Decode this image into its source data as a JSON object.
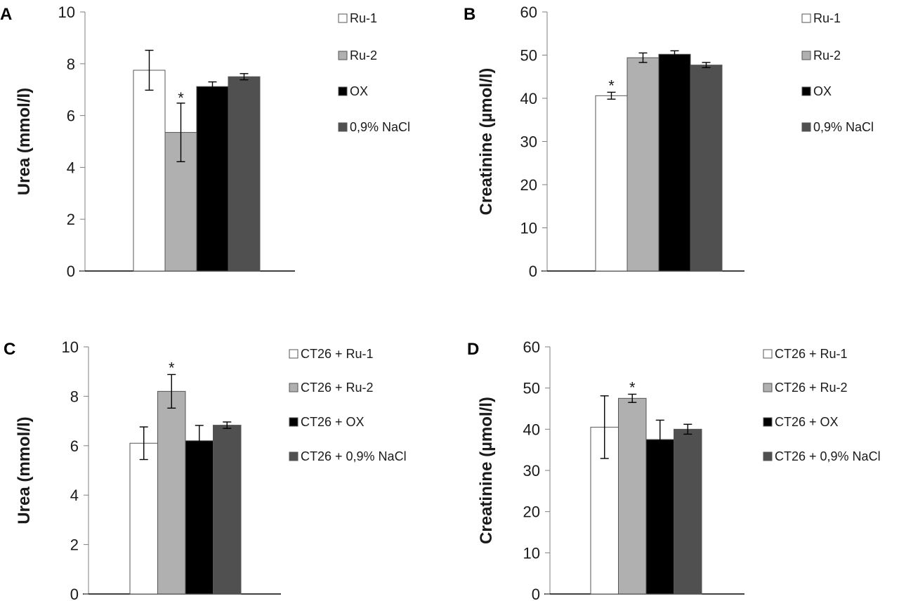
{
  "figure": {
    "colors": {
      "Ru-1": "#ffffff",
      "Ru-2": "#b0b0b0",
      "OX": "#000000",
      "NaCl": "#505050",
      "outline": "#555555",
      "axis": "#7f7f7f",
      "baseline": "#000000"
    }
  },
  "chart_data": [
    {
      "panel": "A",
      "type": "bar",
      "title": "",
      "xlabel": "",
      "ylabel": "Urea (mmol/l)",
      "ylim": [
        0,
        10
      ],
      "yticks": [
        0,
        2,
        4,
        6,
        8,
        10
      ],
      "grid": false,
      "legend_position": "right",
      "series": [
        {
          "name": "Ru-1",
          "value": 7.75,
          "error": 0.77,
          "significant": false
        },
        {
          "name": "Ru-2",
          "value": 5.35,
          "error": 1.13,
          "significant": true
        },
        {
          "name": "OX",
          "value": 7.12,
          "error": 0.18,
          "significant": false
        },
        {
          "name": "0,9% NaCl",
          "value": 7.5,
          "error": 0.12,
          "significant": false
        }
      ],
      "annotation": "*"
    },
    {
      "panel": "B",
      "type": "bar",
      "title": "",
      "xlabel": "",
      "ylabel": "Creatinine (µmol/l)",
      "ylim": [
        0,
        60
      ],
      "yticks": [
        0,
        10,
        20,
        30,
        40,
        50,
        60
      ],
      "grid": false,
      "legend_position": "right",
      "series": [
        {
          "name": "Ru-1",
          "value": 40.6,
          "error": 0.8,
          "significant": true
        },
        {
          "name": "Ru-2",
          "value": 49.4,
          "error": 1.1,
          "significant": false
        },
        {
          "name": "OX",
          "value": 50.2,
          "error": 0.8,
          "significant": false
        },
        {
          "name": "0,9% NaCl",
          "value": 47.7,
          "error": 0.6,
          "significant": false
        }
      ],
      "annotation": "*"
    },
    {
      "panel": "C",
      "type": "bar",
      "title": "",
      "xlabel": "",
      "ylabel": "Urea (mmol/l)",
      "ylim": [
        0,
        10
      ],
      "yticks": [
        0,
        2,
        4,
        6,
        8,
        10
      ],
      "grid": false,
      "legend_position": "right",
      "series": [
        {
          "name": "CT26 + Ru-1",
          "value": 6.1,
          "error": 0.66,
          "significant": false
        },
        {
          "name": "CT26 + Ru-2",
          "value": 8.2,
          "error": 0.68,
          "significant": true
        },
        {
          "name": "CT26 + OX",
          "value": 6.2,
          "error": 0.62,
          "significant": false
        },
        {
          "name": "CT26 + 0,9% NaCl",
          "value": 6.83,
          "error": 0.13,
          "significant": false
        }
      ],
      "annotation": "*"
    },
    {
      "panel": "D",
      "type": "bar",
      "title": "",
      "xlabel": "",
      "ylabel": "Creatinine (µmol/l)",
      "ylim": [
        0,
        60
      ],
      "yticks": [
        0,
        10,
        20,
        30,
        40,
        50,
        60
      ],
      "grid": false,
      "legend_position": "right",
      "series": [
        {
          "name": "CT26 + Ru-1",
          "value": 40.5,
          "error": 7.6,
          "significant": false
        },
        {
          "name": "CT26 + Ru-2",
          "value": 47.5,
          "error": 1.0,
          "significant": true
        },
        {
          "name": "CT26 + OX",
          "value": 37.5,
          "error": 4.7,
          "significant": false
        },
        {
          "name": "CT26 + 0,9% NaCl",
          "value": 40.0,
          "error": 1.2,
          "significant": false
        }
      ],
      "annotation": "*"
    }
  ]
}
